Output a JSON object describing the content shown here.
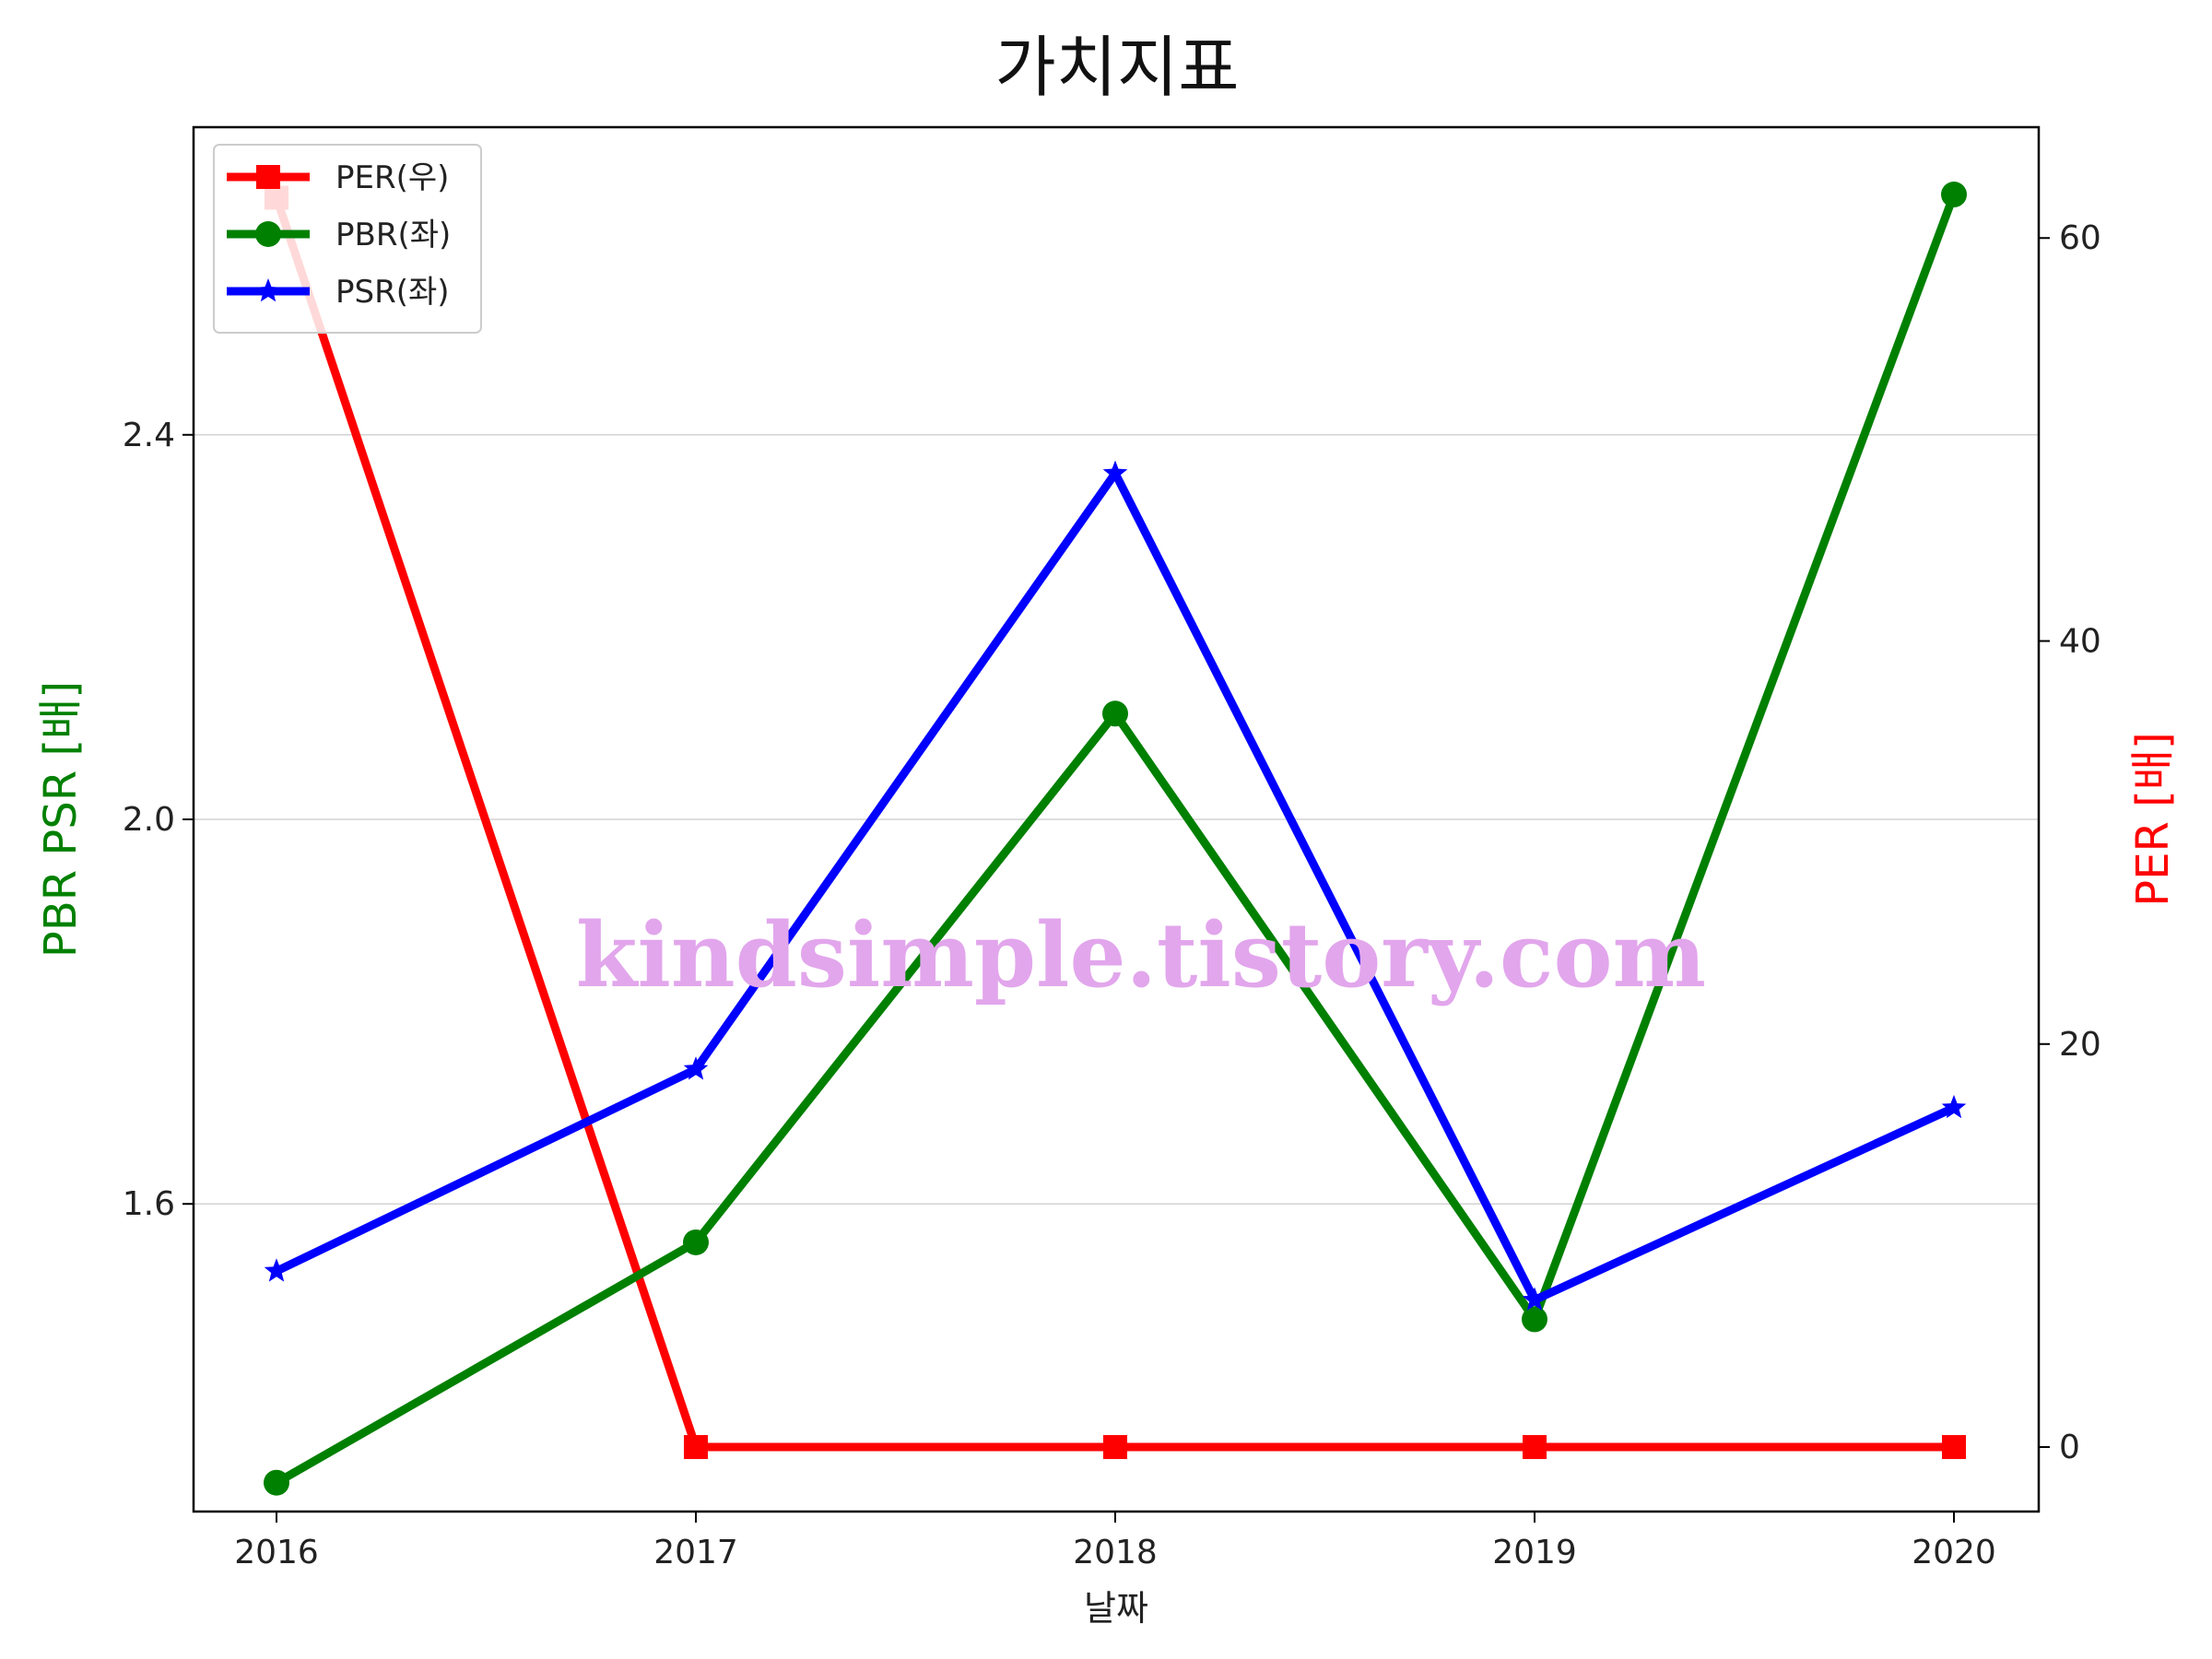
{
  "chart_data": {
    "type": "line",
    "title": "가치지표",
    "xlabel": "날짜",
    "ylabel_left": "PBR PSR [배]",
    "ylabel_right": "PER [배]",
    "categories": [
      "2016",
      "2017",
      "2018",
      "2019",
      "2020"
    ],
    "ylim_left": [
      1.28,
      2.72
    ],
    "yticks_left": [
      1.6,
      2.0,
      2.4
    ],
    "ytick_labels_left": [
      "1.6",
      "2.0",
      "2.4"
    ],
    "ylim_right": [
      -3.2,
      65.5
    ],
    "yticks_right": [
      0,
      20,
      40,
      60
    ],
    "ytick_labels_right": [
      "0",
      "20",
      "40",
      "60"
    ],
    "grid": "horizontal, left axis",
    "legend_position": "top-left",
    "series": [
      {
        "name": "PER(우)",
        "axis": "right",
        "color": "#ff0000",
        "marker": "square",
        "values": [
          62.0,
          0.0,
          0.0,
          0.0,
          0.0
        ]
      },
      {
        "name": "PBR(좌)",
        "axis": "left",
        "color": "#008000",
        "marker": "circle",
        "values": [
          1.31,
          1.56,
          2.11,
          1.48,
          2.65
        ]
      },
      {
        "name": "PSR(좌)",
        "axis": "left",
        "color": "#0000ff",
        "marker": "star",
        "values": [
          1.53,
          1.74,
          2.36,
          1.5,
          1.7
        ]
      }
    ],
    "watermark": {
      "text": "kindsimple.tistory.com",
      "color": "#e2a6ec"
    }
  }
}
